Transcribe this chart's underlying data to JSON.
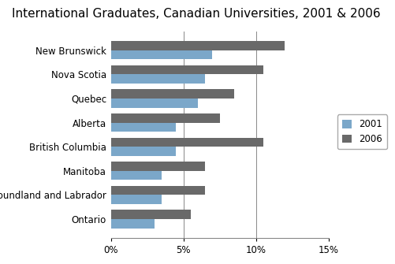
{
  "title": "International Graduates, Canadian Universities, 2001 & 2006",
  "categories": [
    "New Brunswick",
    "Nova Scotia",
    "Quebec",
    "Alberta",
    "British Columbia",
    "Manitoba",
    "Newfoundland and Labrador",
    "Ontario"
  ],
  "values_2001": [
    7.0,
    6.5,
    6.0,
    4.5,
    4.5,
    3.5,
    3.5,
    3.0
  ],
  "values_2006": [
    12.0,
    10.5,
    8.5,
    7.5,
    10.5,
    6.5,
    6.5,
    5.5
  ],
  "color_2001": "#7BA7C9",
  "color_2006": "#696969",
  "legend_labels": [
    "2001",
    "2006"
  ],
  "xlim": [
    0,
    15
  ],
  "xticks": [
    0,
    5,
    10,
    15
  ],
  "xtick_labels": [
    "0%",
    "5%",
    "10%",
    "15%"
  ],
  "background_color": "#ffffff",
  "title_fontsize": 11,
  "tick_fontsize": 8.5,
  "bar_height": 0.38
}
